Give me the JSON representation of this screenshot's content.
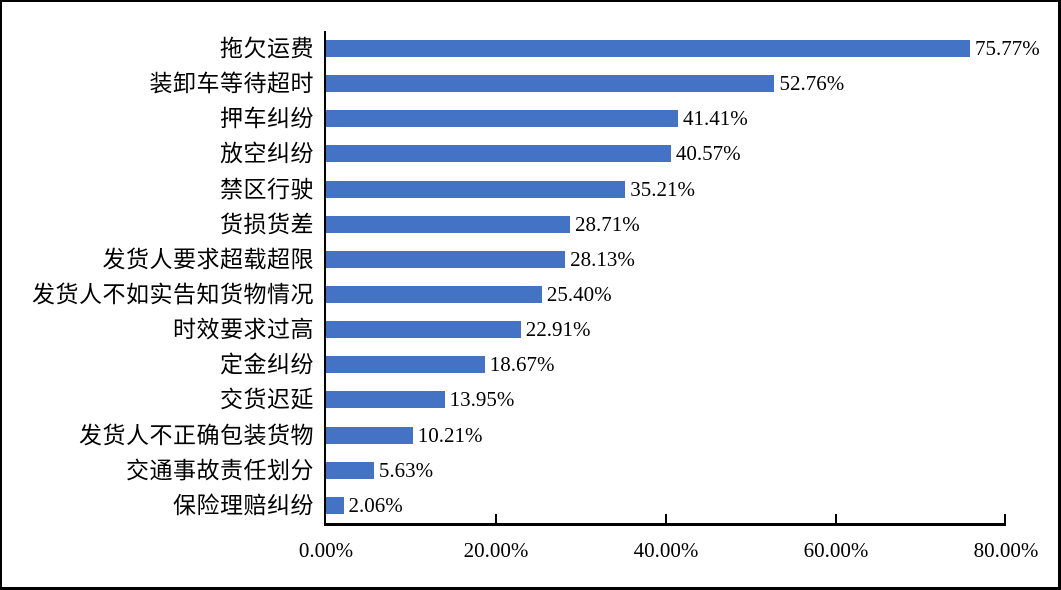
{
  "chart_data": {
    "type": "bar",
    "orientation": "horizontal",
    "title": "",
    "xlabel": "",
    "ylabel": "",
    "grid": false,
    "legend": false,
    "xlim": [
      0,
      80
    ],
    "x_ticks": [
      "0.00%",
      "20.00%",
      "40.00%",
      "60.00%",
      "80.00%"
    ],
    "x_tick_values": [
      0,
      20,
      40,
      60,
      80
    ],
    "bar_color": "#4472C4",
    "axis_color": "#000000",
    "text_color": "#000000",
    "categories": [
      "拖欠运费",
      "装卸车等待超时",
      "押车纠纷",
      "放空纠纷",
      "禁区行驶",
      "货损货差",
      "发货人要求超载超限",
      "发货人不如实告知货物情况",
      "时效要求过高",
      "定金纠纷",
      "交货迟延",
      "发货人不正确包装货物",
      "交通事故责任划分",
      "保险理赔纠纷"
    ],
    "values": [
      75.77,
      52.76,
      41.41,
      40.57,
      35.21,
      28.71,
      28.13,
      25.4,
      22.91,
      18.67,
      13.95,
      10.21,
      5.63,
      2.06
    ],
    "value_labels": [
      "75.77%",
      "52.76%",
      "41.41%",
      "40.57%",
      "35.21%",
      "28.71%",
      "28.13%",
      "25.40%",
      "22.91%",
      "18.67%",
      "13.95%",
      "10.21%",
      "5.63%",
      "2.06%"
    ]
  }
}
